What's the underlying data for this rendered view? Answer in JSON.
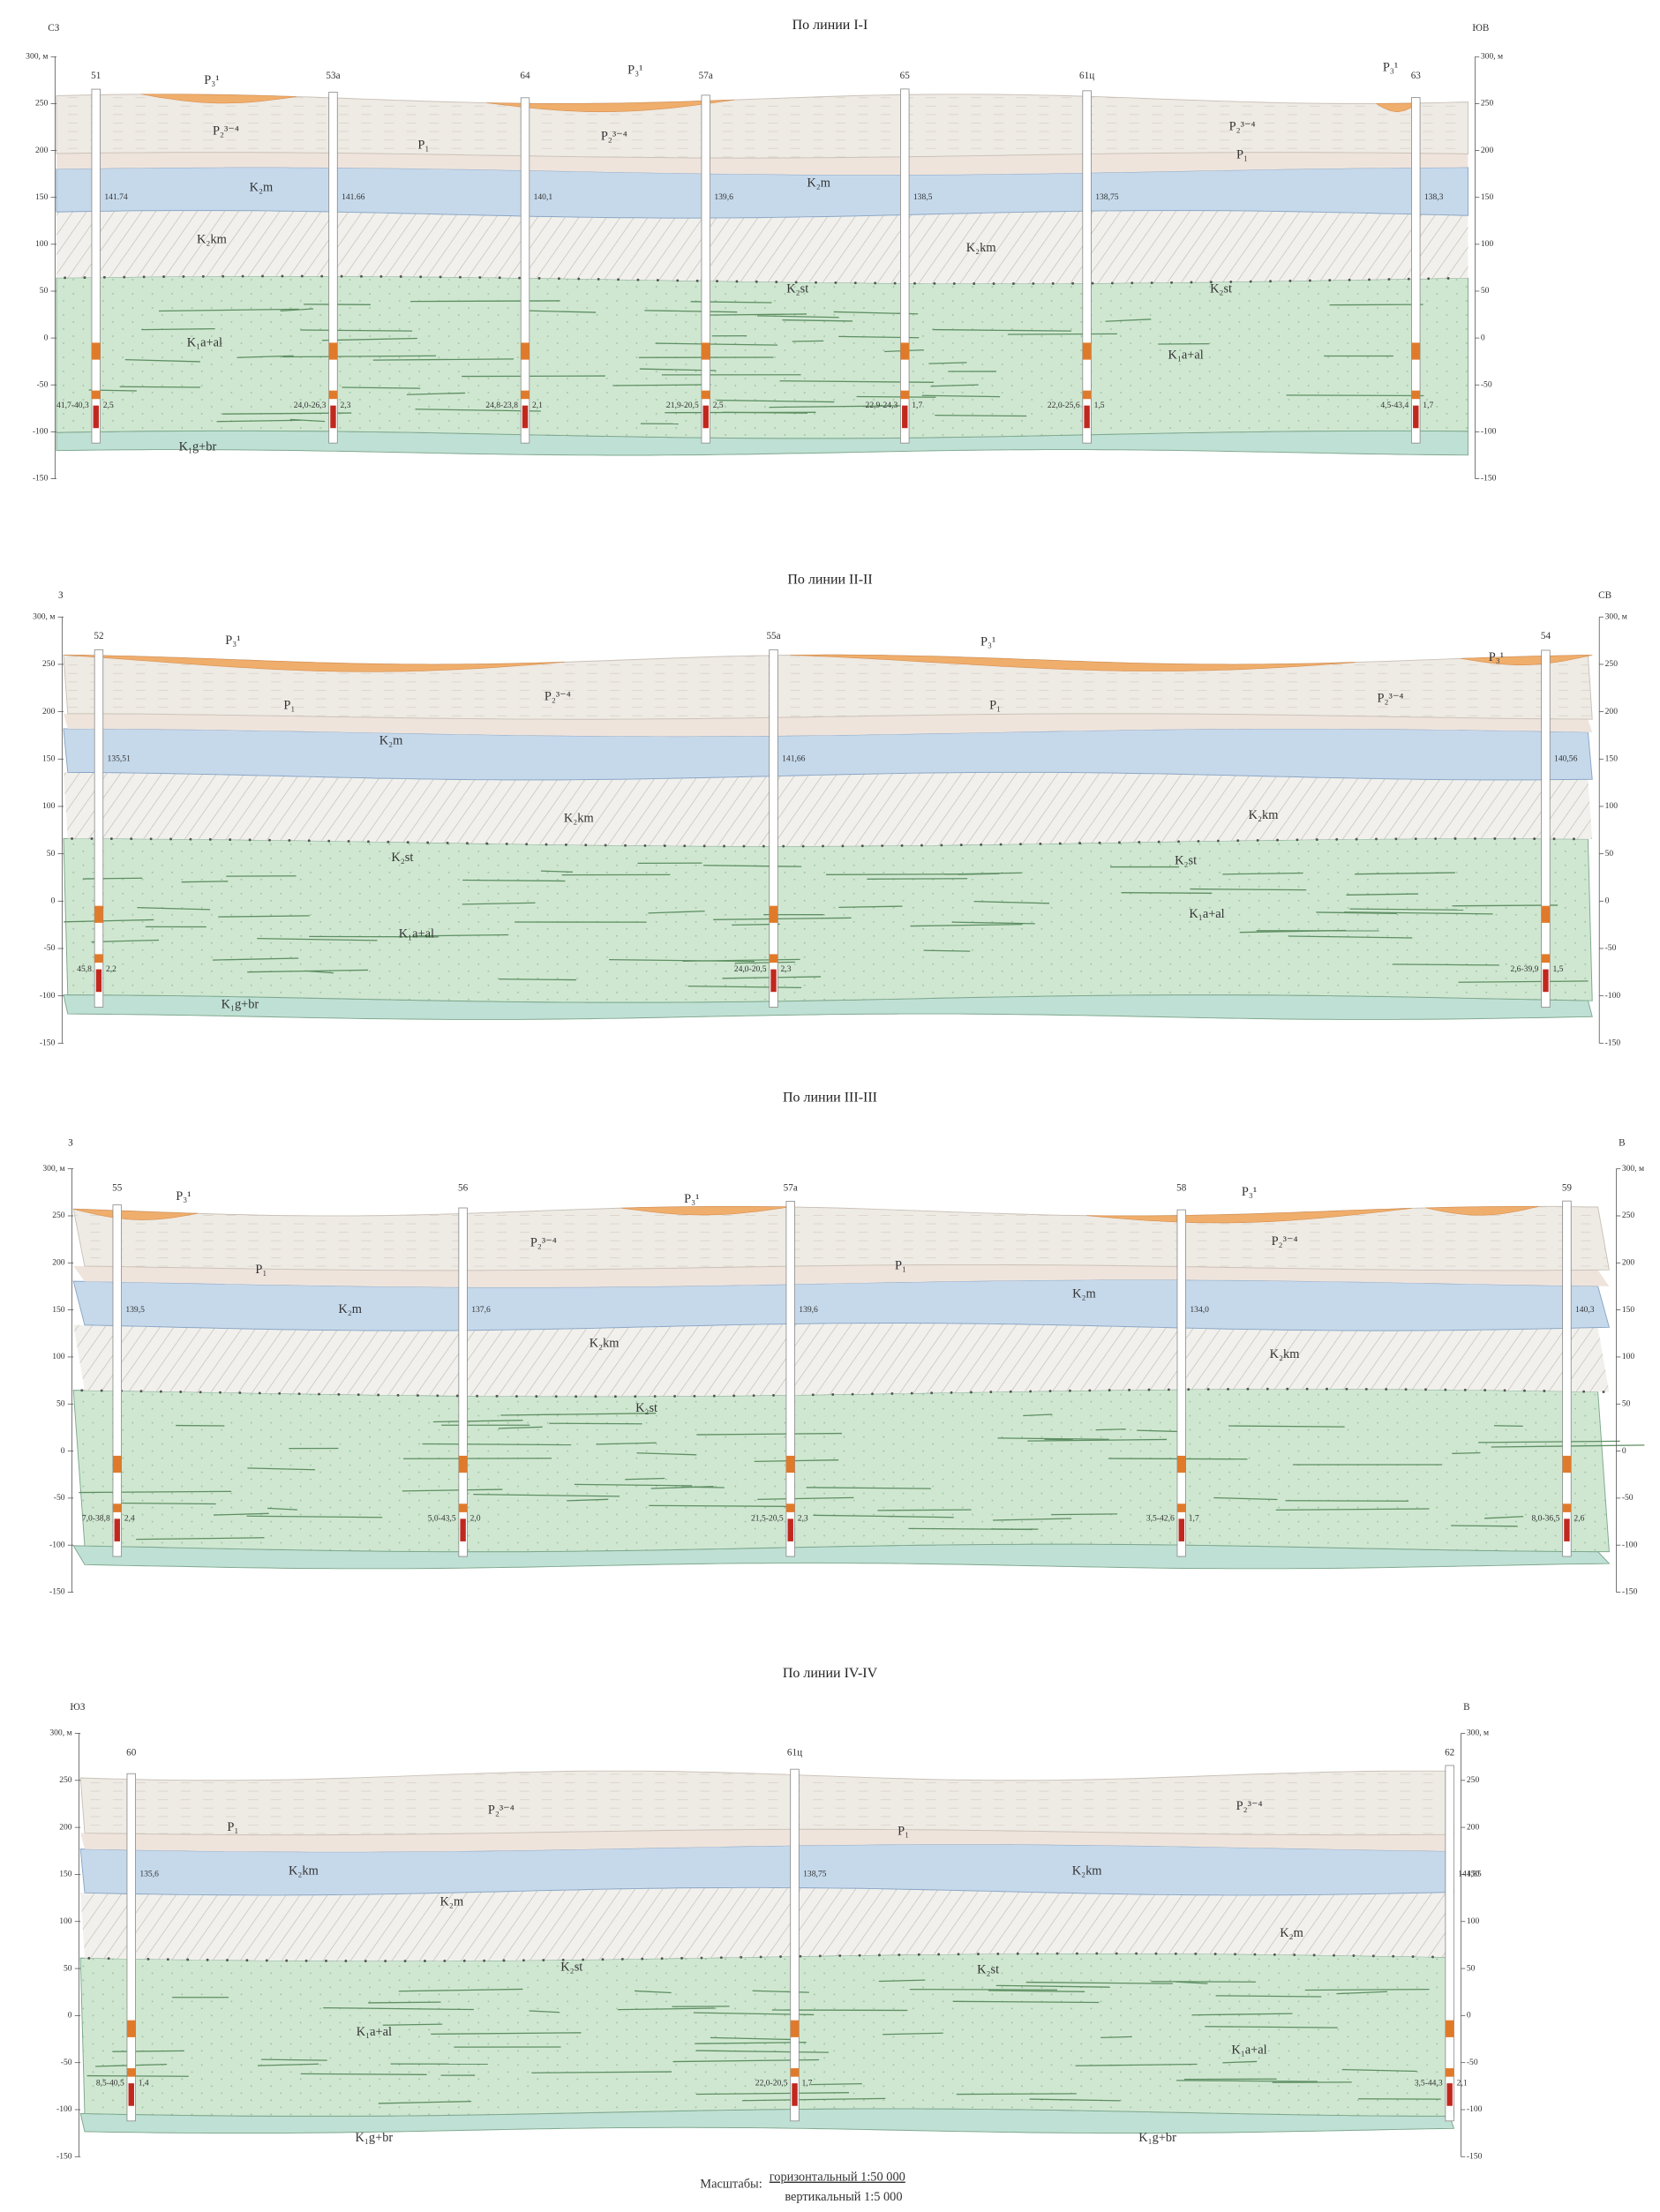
{
  "depth_axis": [
    "300, м",
    "250",
    "200",
    "150",
    "100",
    "50",
    "0",
    "-50",
    "-100",
    "-150"
  ],
  "sections": [
    {
      "title": "По линии I-I",
      "left_dir": "СЗ",
      "right_dir": "ЮВ",
      "layer_labels": [
        "P₃¹",
        "P₃¹",
        "P₃¹",
        "P₂³⁻⁴",
        "P₂³⁻⁴",
        "P₂³⁻⁴",
        "P₁",
        "P₁",
        "K₂m",
        "K₂m",
        "K₂km",
        "K₂km",
        "K₂st",
        "K₂st",
        "K₁a+al",
        "K₁a+al",
        "K₁g+br"
      ],
      "wells": [
        {
          "name": "51",
          "level": "141.74",
          "interval": "41,7-40,3",
          "thickness": "2,5"
        },
        {
          "name": "53а",
          "level": "141.66",
          "interval": "24,0-26,3",
          "thickness": "2,3"
        },
        {
          "name": "64",
          "level": "140,1",
          "interval": "24,8-23,8",
          "thickness": "2,1"
        },
        {
          "name": "57а",
          "level": "139,6",
          "interval": "21,9-20,5",
          "thickness": "2,5"
        },
        {
          "name": "65",
          "level": "138,5",
          "interval": "22,9-24,3",
          "thickness": "1,7"
        },
        {
          "name": "61ц",
          "level": "138,75",
          "interval": "22,0-25,6",
          "thickness": "1,5"
        },
        {
          "name": "63",
          "level": "138,3",
          "interval": "4,5-43,4",
          "thickness": "1,7"
        }
      ]
    },
    {
      "title": "По линии II-II",
      "left_dir": "З",
      "right_dir": "СВ",
      "layer_labels": [
        "P₃¹",
        "P₃¹",
        "P₃¹",
        "P₂³⁻⁴",
        "P₂³⁻⁴",
        "P₁",
        "P₁",
        "K₂m",
        "K₂km",
        "K₂km",
        "K₂st",
        "K₂st",
        "K₁a+al",
        "K₁a+al",
        "K₁g+br"
      ],
      "wells": [
        {
          "name": "52",
          "level": "135,51",
          "interval": "45,8",
          "thickness": "2,2"
        },
        {
          "name": "55а",
          "level": "141,66",
          "interval": "24,0-20,5",
          "thickness": "2,3"
        },
        {
          "name": "54",
          "level": "140,56",
          "interval": "2,6-39,9",
          "thickness": "1,5"
        }
      ]
    },
    {
      "title": "По линии III-III",
      "left_dir": "З",
      "right_dir": "В",
      "layer_labels": [
        "P₃¹",
        "P₃¹",
        "P₃¹",
        "P₂³⁻⁴",
        "P₂³⁻⁴",
        "P₁",
        "P₁",
        "K₂m",
        "K₂m",
        "K₂km",
        "K₂km",
        "K₂st"
      ],
      "wells": [
        {
          "name": "55",
          "level": "139,5",
          "interval": "7,0-38,8",
          "thickness": "2,4"
        },
        {
          "name": "56",
          "level": "137,6",
          "interval": "5,0-43,5",
          "thickness": "2,0"
        },
        {
          "name": "57а",
          "level": "139,6",
          "interval": "21,5-20,5",
          "thickness": "2,3"
        },
        {
          "name": "58",
          "level": "134,0",
          "interval": "3,5-42,6",
          "thickness": "1,7"
        },
        {
          "name": "59",
          "level": "140,3",
          "interval": "8,0-36,5",
          "thickness": "2,6"
        }
      ]
    },
    {
      "title": "По линии IV-IV",
      "left_dir": "ЮЗ",
      "right_dir": "В",
      "layer_labels": [
        "P₂³⁻⁴",
        "P₂³⁻⁴",
        "P₁",
        "P₁",
        "K₂km",
        "K₂km",
        "K₂m",
        "K₂m",
        "K₂st",
        "K₂st",
        "K₁a+al",
        "K₁a+al",
        "K₁g+br",
        "K₁g+br"
      ],
      "wells": [
        {
          "name": "60",
          "level": "135,6",
          "interval": "8,5-40,5",
          "thickness": "1,4"
        },
        {
          "name": "61ц",
          "level": "138,75",
          "interval": "22,0-20,5",
          "thickness": "1,7"
        },
        {
          "name": "62",
          "level": "144,85",
          "interval": "3,5-44,3",
          "thickness": "2,1"
        }
      ]
    }
  ],
  "scale": {
    "label": "Масштабы:",
    "horizontal": "горизонтальный 1:50 000",
    "vertical": "вертикальный 1:5 000"
  }
}
